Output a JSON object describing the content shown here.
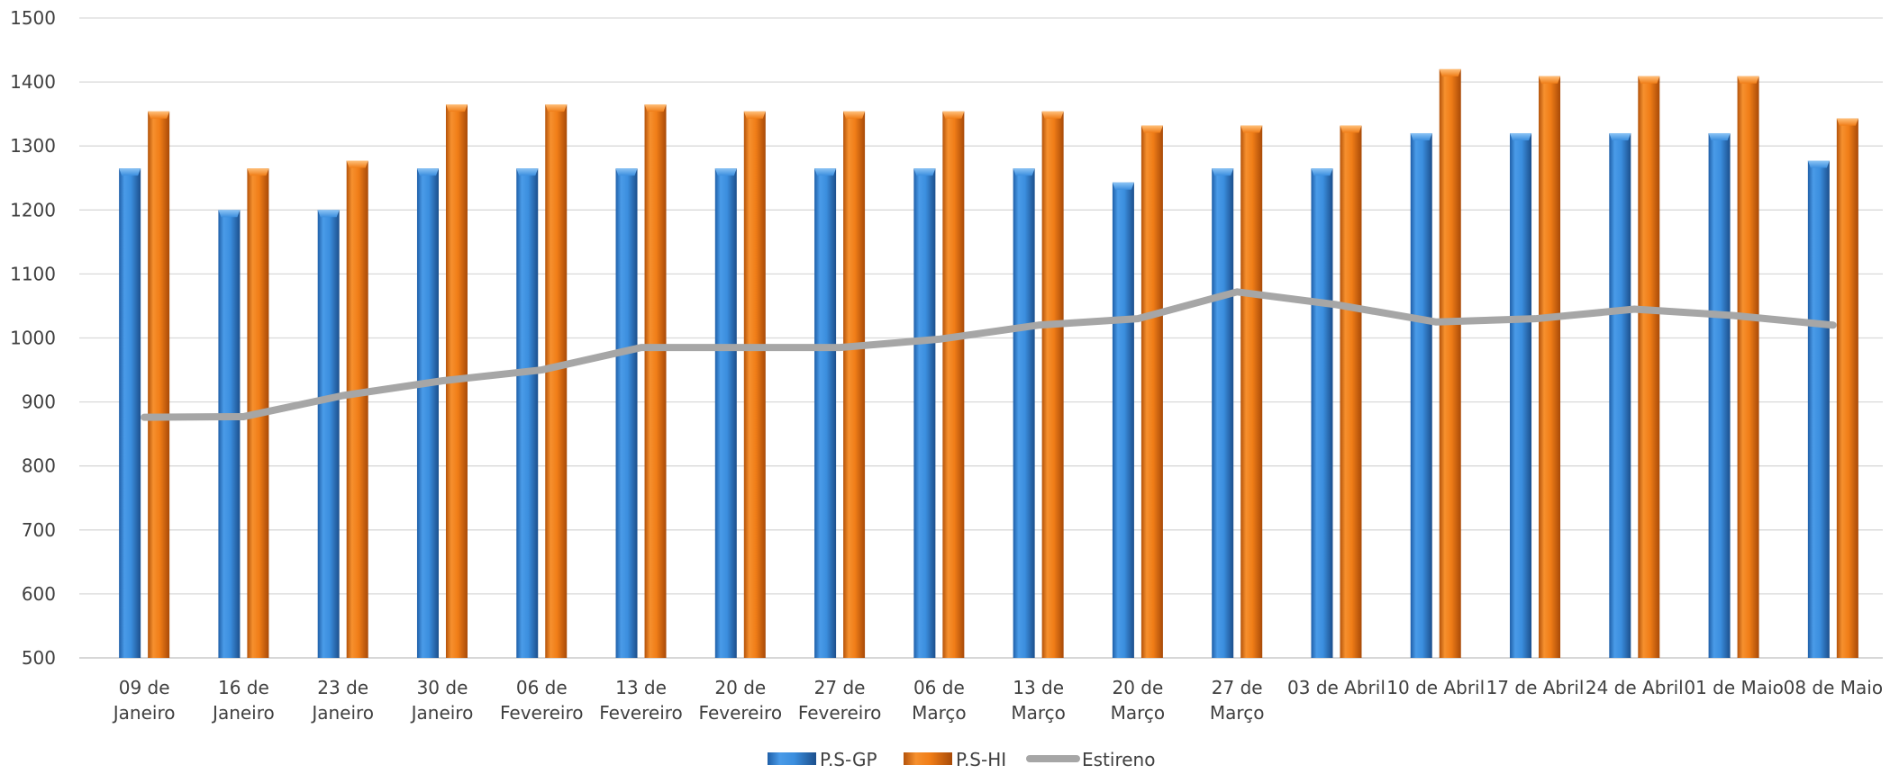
{
  "chart_data": {
    "type": "bar",
    "categories": [
      [
        "09 de",
        "Janeiro"
      ],
      [
        "16 de",
        "Janeiro"
      ],
      [
        "23 de",
        "Janeiro"
      ],
      [
        "30 de",
        "Janeiro"
      ],
      [
        "06 de",
        "Fevereiro"
      ],
      [
        "13 de",
        "Fevereiro"
      ],
      [
        "20 de",
        "Fevereiro"
      ],
      [
        "27 de",
        "Fevereiro"
      ],
      [
        "06 de",
        "Março"
      ],
      [
        "13 de",
        "Março"
      ],
      [
        "20 de",
        "Março"
      ],
      [
        "27 de",
        "Março"
      ],
      [
        "03 de Abril"
      ],
      [
        "10 de Abril"
      ],
      [
        "17 de Abril"
      ],
      [
        "24 de Abril"
      ],
      [
        "01 de Maio"
      ],
      [
        "08 de Maio"
      ]
    ],
    "series": [
      {
        "name": "P.S-GP",
        "type": "bar",
        "color": "#3b8ede",
        "values": [
          1265,
          1200,
          1200,
          1265,
          1265,
          1265,
          1265,
          1265,
          1265,
          1265,
          1243,
          1265,
          1265,
          1320,
          1320,
          1320,
          1320,
          1277
        ]
      },
      {
        "name": "P.S-HI",
        "type": "bar",
        "color": "#f07d17",
        "values": [
          1354,
          1265,
          1277,
          1365,
          1365,
          1365,
          1354,
          1354,
          1354,
          1354,
          1332,
          1332,
          1332,
          1420,
          1409,
          1409,
          1409,
          1343
        ]
      },
      {
        "name": "Estireno",
        "type": "line",
        "color": "#a6a6a6",
        "values": [
          876,
          877,
          910,
          933,
          950,
          985,
          985,
          985,
          998,
          1020,
          1030,
          1072,
          1052,
          1025,
          1030,
          1045,
          1035,
          1020
        ]
      }
    ],
    "ylim": [
      500,
      1500
    ],
    "yticks": [
      500,
      600,
      700,
      800,
      900,
      1000,
      1100,
      1200,
      1300,
      1400,
      1500
    ],
    "grid": true,
    "legend": "bottom-center"
  }
}
